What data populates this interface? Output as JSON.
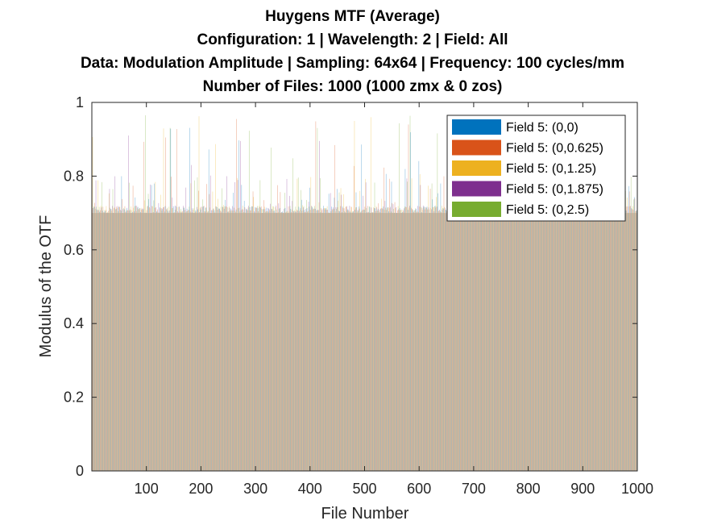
{
  "title_lines": [
    "Huygens MTF (Average)",
    "Configuration: 1 | Wavelength: 2 | Field: All",
    "Data: Modulation Amplitude | Sampling: 64x64 | Frequency: 100 cycles/mm",
    "Number of Files: 1000 (1000 zmx &  0 zos)"
  ],
  "chart_data": {
    "type": "bar",
    "xlabel": "File Number",
    "ylabel": "Modulus of the OTF",
    "xlim": [
      0,
      1000
    ],
    "ylim": [
      0,
      1
    ],
    "xticks": [
      "100",
      "200",
      "300",
      "400",
      "500",
      "600",
      "700",
      "800",
      "900",
      "1000"
    ],
    "yticks": [
      "0",
      "0.2",
      "0.4",
      "0.6",
      "0.8",
      "1"
    ],
    "legend_position": "top-right",
    "n_files": 1000,
    "baseline_value_approx": 0.71,
    "value_range_approx": [
      0.7,
      0.97
    ],
    "series": [
      {
        "name": "Field 5: (0,0)",
        "color": "#0072BD"
      },
      {
        "name": "Field 5: (0,0.625)",
        "color": "#D95319"
      },
      {
        "name": "Field 5: (0,1.25)",
        "color": "#EDB120"
      },
      {
        "name": "Field 5: (0,1.875)",
        "color": "#7E2F8E"
      },
      {
        "name": "Field 5: (0,2.5)",
        "color": "#77AC30"
      }
    ],
    "grid": false
  }
}
